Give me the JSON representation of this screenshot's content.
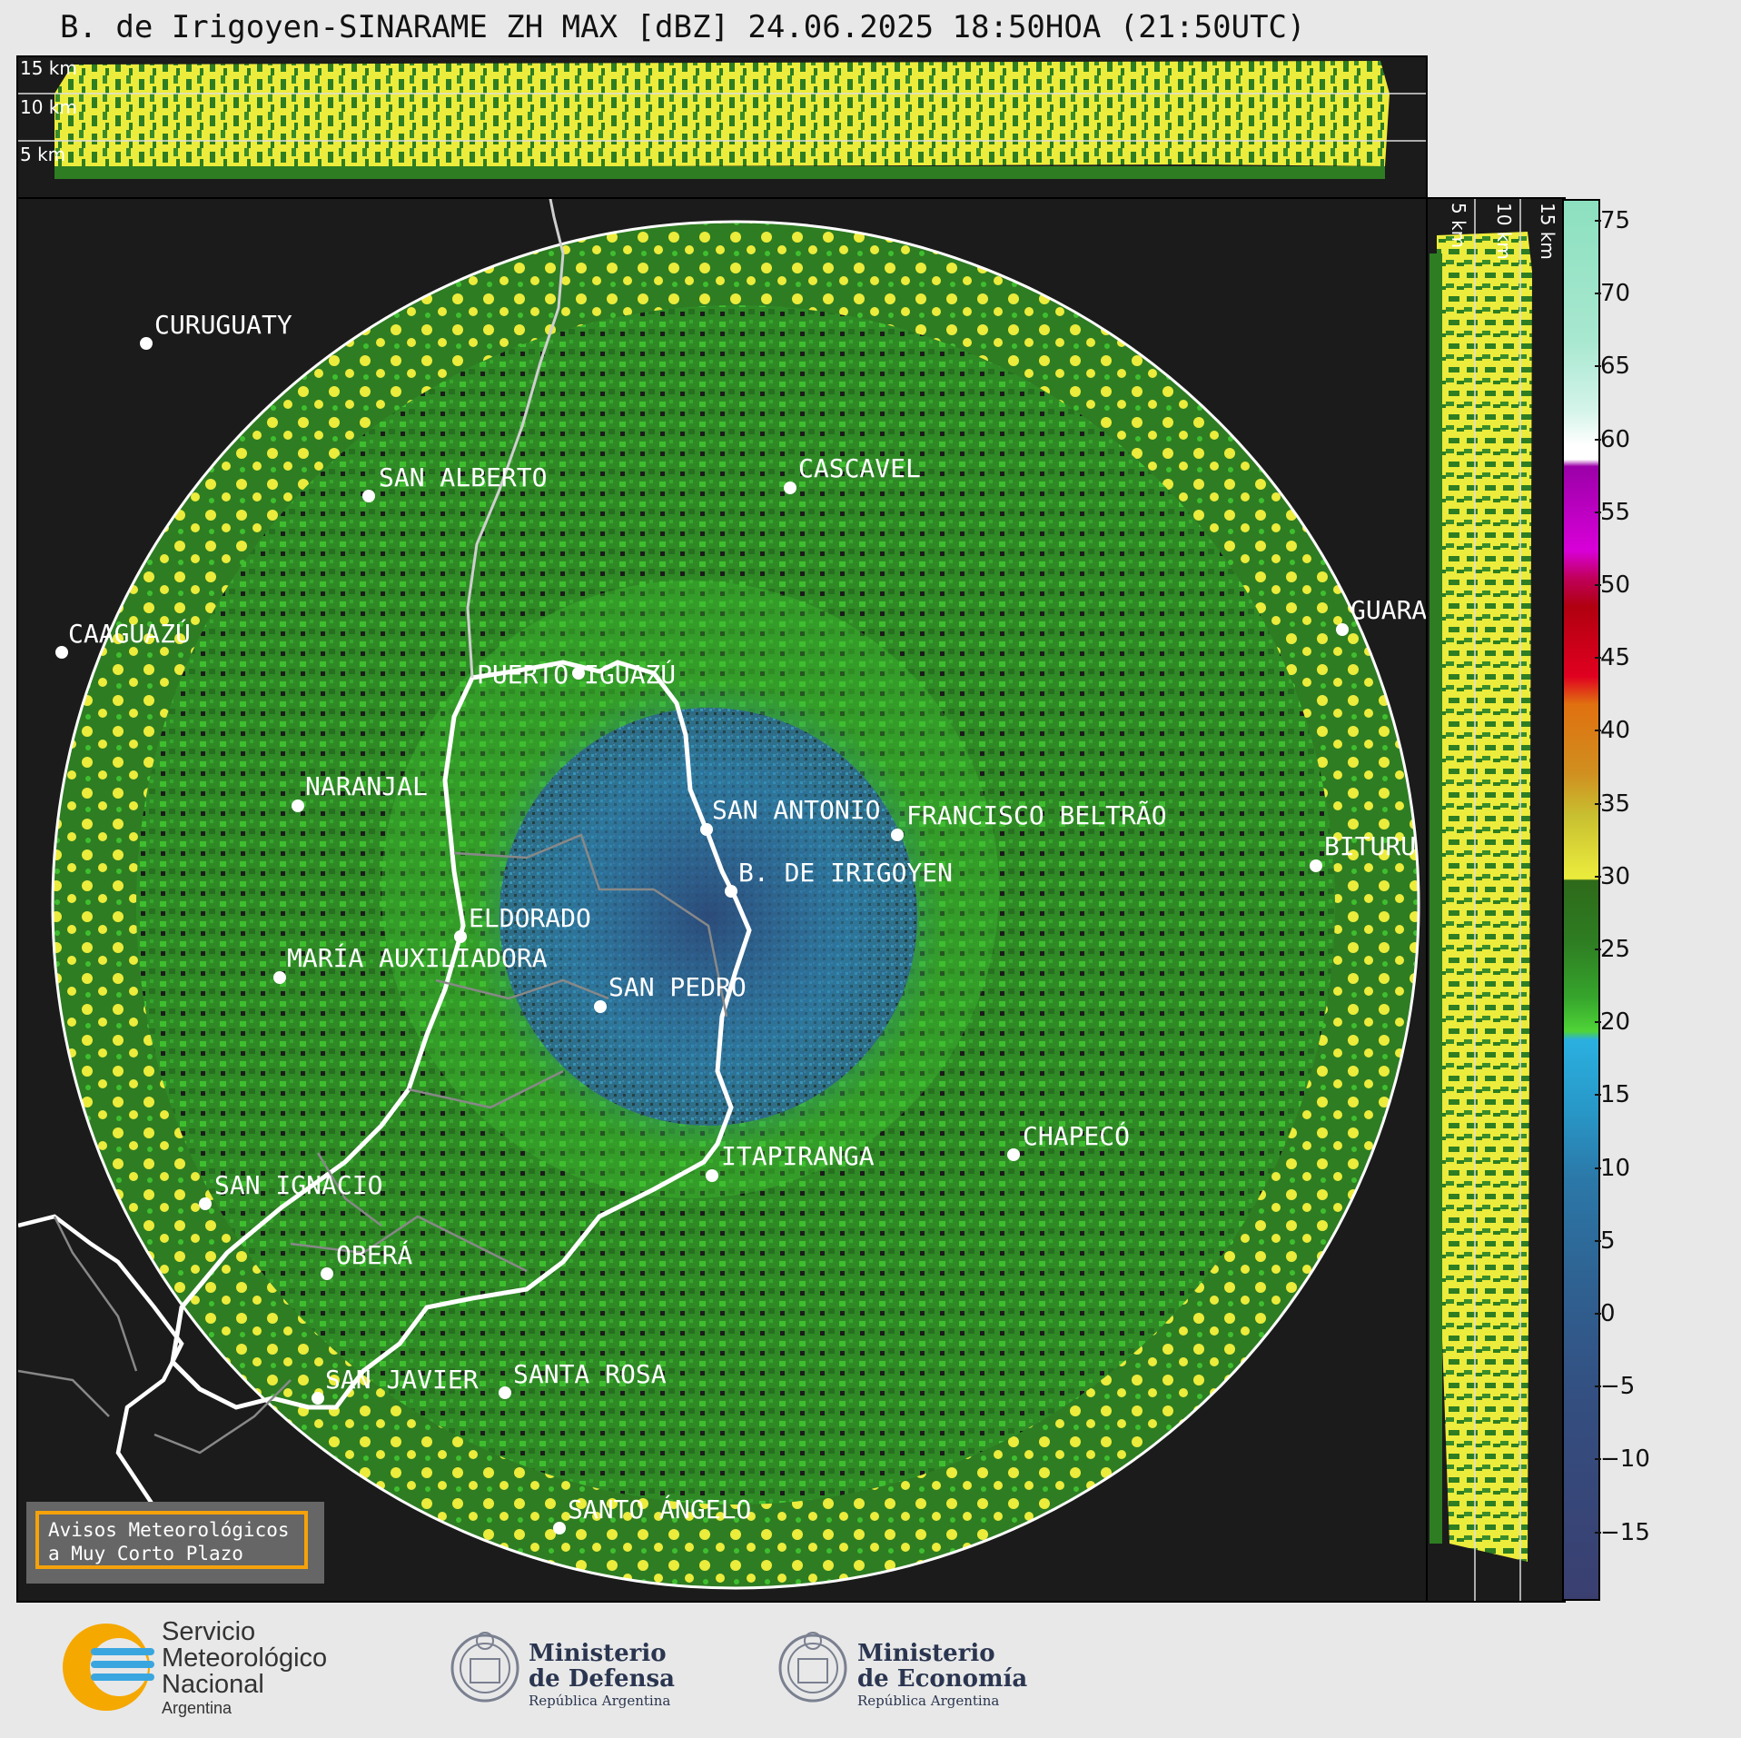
{
  "title": "B. de Irigoyen-SINARAME ZH MAX [dBZ] 24.06.2025 18:50HOA (21:50UTC)",
  "height_labels": [
    "15 km",
    "10 km",
    "5 km"
  ],
  "cities": [
    {
      "name": "CURUGUATY"
    },
    {
      "name": "SAN ALBERTO"
    },
    {
      "name": "CASCAVEL"
    },
    {
      "name": "CAAGUAZÚ"
    },
    {
      "name": "PUERTO IGUAZÚ"
    },
    {
      "name": "GUARA"
    },
    {
      "name": "NARANJAL"
    },
    {
      "name": "SAN ANTONIO"
    },
    {
      "name": "FRANCISCO BELTRÃO"
    },
    {
      "name": "BITURU"
    },
    {
      "name": "B. DE IRIGOYEN"
    },
    {
      "name": "ELDORADO"
    },
    {
      "name": "MARÍA AUXILIADORA"
    },
    {
      "name": "SAN PEDRO"
    },
    {
      "name": "ITAPIRANGA"
    },
    {
      "name": "CHAPECÓ"
    },
    {
      "name": "SAN IGNACIO"
    },
    {
      "name": "OBERÁ"
    },
    {
      "name": "SAN JAVIER"
    },
    {
      "name": "SANTA ROSA"
    },
    {
      "name": "SANTO ÁNGELO"
    }
  ],
  "colorbar": {
    "unit": "dBZ",
    "ticks": [
      "75",
      "70",
      "65",
      "60",
      "55",
      "50",
      "45",
      "40",
      "35",
      "30",
      "25",
      "20",
      "15",
      "10",
      "5",
      "0",
      "−5",
      "−10",
      "−15"
    ]
  },
  "badge": {
    "line1": "Avisos Meteorológicos",
    "line2": "a Muy Corto Plazo"
  },
  "logos": {
    "smn_line1": "Servicio",
    "smn_line2": "Meteorológico",
    "smn_line3": "Nacional",
    "smn_line4": "Argentina",
    "defensa_line1": "Ministerio",
    "defensa_line2": "de Defensa",
    "defensa_rep": "República Argentina",
    "economia_line1": "Ministerio",
    "economia_line2": "de Economía",
    "economia_rep": "República Argentina"
  },
  "colors": {
    "background": "#1b1b1b",
    "echo_low": "#2e7d22",
    "echo_mid": "#3fbf30",
    "echo_high": "#ecec3c",
    "clear_air": "#2f7fb0",
    "range_ring": "#ffffff"
  }
}
